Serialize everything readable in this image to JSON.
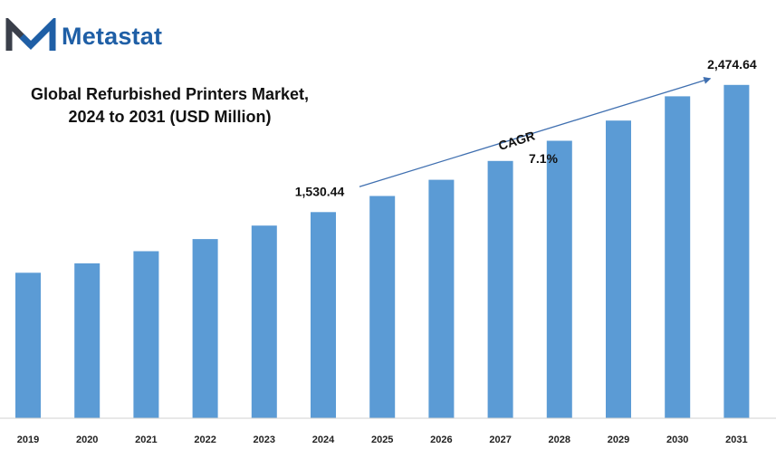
{
  "brand": {
    "name": "Metastat",
    "color": "#1f5fa6",
    "mark_dark": "#3a3f4a"
  },
  "chart_data": {
    "type": "bar",
    "title_lines": [
      "Global Refurbished Printers Market,",
      "2024 to 2031 (USD Million)"
    ],
    "categories": [
      "2019",
      "2020",
      "2021",
      "2022",
      "2023",
      "2024",
      "2025",
      "2026",
      "2027",
      "2028",
      "2029",
      "2030",
      "2031"
    ],
    "values": [
      1080,
      1150,
      1240,
      1330,
      1430,
      1530.44,
      1650,
      1770,
      1910,
      2060,
      2210,
      2390,
      2474.64
    ],
    "ylim": [
      0,
      2500
    ],
    "bar_color": "#5b9bd5",
    "data_labels": [
      {
        "category": "2024",
        "text": "1,530.44"
      },
      {
        "category": "2031",
        "text": "2,474.64"
      }
    ],
    "annotation": {
      "label": "CAGR",
      "value": "7.1%",
      "from_category": "2024",
      "to_category": "2031",
      "color": "#3f6fb0"
    },
    "grid": false,
    "legend": "none"
  }
}
